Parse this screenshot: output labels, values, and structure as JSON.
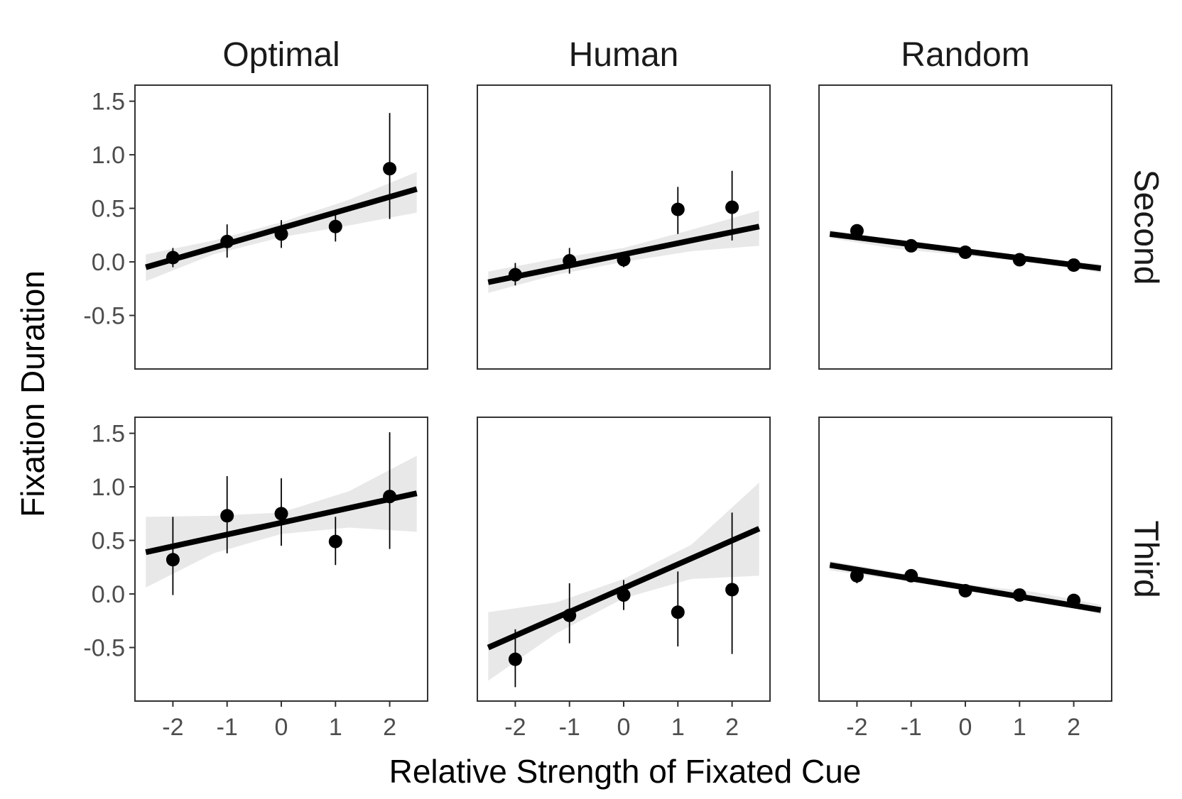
{
  "chart_data": {
    "type": "scatter",
    "layout": "faceted 2x3 grid",
    "xlabel": "Relative Strength of Fixated Cue",
    "ylabel": "Fixation Duration",
    "columns": [
      "Optimal",
      "Human",
      "Random"
    ],
    "rows": [
      "Second",
      "Third"
    ],
    "xlim": [
      -2.7,
      2.7
    ],
    "ylim": [
      -1.0,
      1.65
    ],
    "x_ticks": [
      -2,
      -1,
      0,
      1,
      2
    ],
    "x_tick_labels": [
      "-2",
      "-1",
      "0",
      "1",
      "2"
    ],
    "y_ticks": [
      -0.5,
      0.0,
      0.5,
      1.0,
      1.5
    ],
    "y_tick_labels": [
      "-0.5",
      "0.0",
      "0.5",
      "1.0",
      "1.5"
    ],
    "grid": false,
    "panels": [
      {
        "column": "Optimal",
        "row": "Second",
        "x": [
          -2,
          -1,
          0,
          1,
          2
        ],
        "y": [
          0.04,
          0.19,
          0.26,
          0.33,
          0.87
        ],
        "err_low": [
          -0.05,
          0.04,
          0.13,
          0.19,
          0.4
        ],
        "err_high": [
          0.13,
          0.35,
          0.39,
          0.46,
          1.39
        ],
        "fit": {
          "x_start": -2.5,
          "x_end": 2.5,
          "y_start": -0.05,
          "y_end": 0.68
        },
        "band": {
          "x": [
            -2.5,
            -1.25,
            0,
            1.25,
            2.5
          ],
          "lower": [
            -0.18,
            0.07,
            0.23,
            0.34,
            0.46
          ],
          "upper": [
            0.07,
            0.2,
            0.37,
            0.58,
            0.84
          ]
        }
      },
      {
        "column": "Human",
        "row": "Second",
        "x": [
          -2,
          -1,
          0,
          1,
          2
        ],
        "y": [
          -0.12,
          0.01,
          0.02,
          0.49,
          0.51
        ],
        "err_low": [
          -0.22,
          -0.11,
          -0.05,
          0.26,
          0.2
        ],
        "err_high": [
          -0.01,
          0.13,
          0.08,
          0.7,
          0.85
        ],
        "fit": {
          "x_start": -2.5,
          "x_end": 2.5,
          "y_start": -0.19,
          "y_end": 0.33
        },
        "band": {
          "x": [
            -2.5,
            -1.25,
            0,
            1.25,
            2.5
          ],
          "lower": [
            -0.29,
            -0.12,
            0.0,
            0.1,
            0.15
          ],
          "upper": [
            -0.09,
            0.03,
            0.13,
            0.3,
            0.48
          ]
        }
      },
      {
        "column": "Random",
        "row": "Second",
        "x": [
          -2,
          -1,
          0,
          1,
          2
        ],
        "y": [
          0.29,
          0.15,
          0.09,
          0.02,
          -0.03
        ],
        "err_low": [
          0.23,
          0.11,
          0.06,
          -0.01,
          -0.07
        ],
        "err_high": [
          0.35,
          0.19,
          0.12,
          0.05,
          0.01
        ],
        "fit": {
          "x_start": -2.5,
          "x_end": 2.5,
          "y_start": 0.26,
          "y_end": -0.06
        },
        "band": {
          "x": [
            -2.5,
            -1.25,
            0,
            1.25,
            2.5
          ],
          "lower": [
            0.22,
            0.12,
            0.06,
            -0.01,
            -0.1
          ],
          "upper": [
            0.3,
            0.18,
            0.1,
            0.03,
            -0.02
          ]
        }
      },
      {
        "column": "Optimal",
        "row": "Third",
        "x": [
          -2,
          -1,
          0,
          1,
          2
        ],
        "y": [
          0.32,
          0.73,
          0.75,
          0.49,
          0.91
        ],
        "err_low": [
          -0.01,
          0.38,
          0.45,
          0.27,
          0.42
        ],
        "err_high": [
          0.72,
          1.1,
          1.08,
          0.72,
          1.51
        ],
        "fit": {
          "x_start": -2.5,
          "x_end": 2.5,
          "y_start": 0.39,
          "y_end": 0.94
        },
        "band": {
          "x": [
            -2.5,
            -1.25,
            0,
            1.25,
            2.5
          ],
          "lower": [
            0.06,
            0.38,
            0.56,
            0.62,
            0.58
          ],
          "upper": [
            0.72,
            0.73,
            0.76,
            0.96,
            1.29
          ]
        }
      },
      {
        "column": "Human",
        "row": "Third",
        "x": [
          -2,
          -1,
          0,
          1,
          2
        ],
        "y": [
          -0.61,
          -0.2,
          -0.01,
          -0.17,
          0.04
        ],
        "err_low": [
          -0.87,
          -0.46,
          -0.15,
          -0.49,
          -0.56
        ],
        "err_high": [
          -0.33,
          0.1,
          0.13,
          0.21,
          0.76
        ],
        "fit": {
          "x_start": -2.5,
          "x_end": 2.5,
          "y_start": -0.5,
          "y_end": 0.61
        },
        "band": {
          "x": [
            -2.5,
            -1.25,
            0,
            1.25,
            2.5
          ],
          "lower": [
            -0.81,
            -0.37,
            -0.04,
            0.14,
            0.17
          ],
          "upper": [
            -0.17,
            -0.08,
            0.14,
            0.46,
            1.04
          ]
        }
      },
      {
        "column": "Random",
        "row": "Third",
        "x": [
          -2,
          -1,
          0,
          1,
          2
        ],
        "y": [
          0.17,
          0.17,
          0.03,
          -0.01,
          -0.06
        ],
        "err_low": [
          0.1,
          0.12,
          -0.01,
          -0.05,
          -0.11
        ],
        "err_high": [
          0.24,
          0.21,
          0.07,
          0.03,
          -0.01
        ],
        "fit": {
          "x_start": -2.5,
          "x_end": 2.5,
          "y_start": 0.27,
          "y_end": -0.15
        },
        "band": {
          "x": [
            -2.5,
            -1.25,
            0,
            1.25,
            2.5
          ],
          "lower": [
            0.22,
            0.13,
            0.05,
            -0.04,
            -0.19
          ],
          "upper": [
            0.31,
            0.2,
            0.09,
            0.02,
            -0.1
          ]
        }
      }
    ],
    "colors": {
      "point": "#000000",
      "line": "#000000",
      "band": "#e8e8e8",
      "frame": "#333333"
    }
  }
}
